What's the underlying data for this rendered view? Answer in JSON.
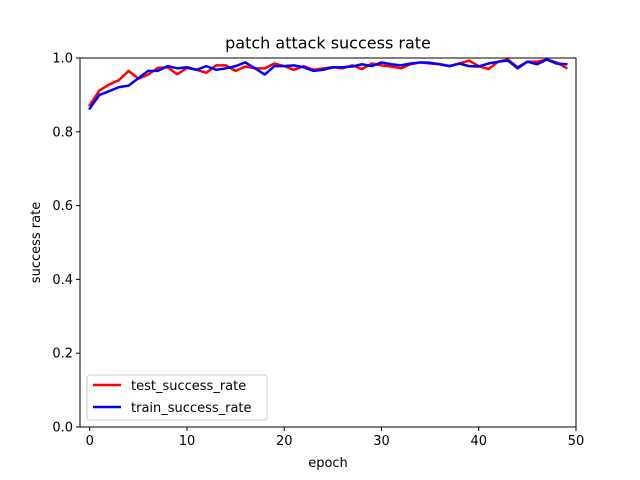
{
  "chart_data": {
    "type": "line",
    "title": "patch attack success rate",
    "xlabel": "epoch",
    "ylabel": "success rate",
    "xlim": [
      -1,
      50
    ],
    "ylim": [
      0,
      1.0
    ],
    "xticks": [
      0,
      10,
      20,
      30,
      40,
      50
    ],
    "xtick_labels": [
      "0",
      "10",
      "20",
      "30",
      "40",
      "50"
    ],
    "yticks": [
      0.0,
      0.2,
      0.4,
      0.6,
      0.8,
      1.0
    ],
    "ytick_labels": [
      "0.0",
      "0.2",
      "0.4",
      "0.6",
      "0.8",
      "1.0"
    ],
    "grid": false,
    "legend_position": "lower-left",
    "x": [
      0,
      1,
      2,
      3,
      4,
      5,
      6,
      7,
      8,
      9,
      10,
      11,
      12,
      13,
      14,
      15,
      16,
      17,
      18,
      19,
      20,
      21,
      22,
      23,
      24,
      25,
      26,
      27,
      28,
      29,
      30,
      31,
      32,
      33,
      34,
      35,
      36,
      37,
      38,
      39,
      40,
      41,
      42,
      43,
      44,
      45,
      46,
      47,
      48,
      49
    ],
    "series": [
      {
        "name": "test_success_rate",
        "color": "#ff0000",
        "values": [
          0.872,
          0.912,
          0.928,
          0.94,
          0.965,
          0.944,
          0.955,
          0.973,
          0.975,
          0.956,
          0.973,
          0.968,
          0.96,
          0.98,
          0.98,
          0.965,
          0.977,
          0.972,
          0.972,
          0.985,
          0.978,
          0.968,
          0.978,
          0.968,
          0.972,
          0.975,
          0.972,
          0.98,
          0.97,
          0.985,
          0.98,
          0.977,
          0.972,
          0.983,
          0.988,
          0.985,
          0.983,
          0.978,
          0.985,
          0.993,
          0.978,
          0.97,
          0.99,
          0.996,
          0.975,
          0.99,
          0.99,
          0.996,
          0.988,
          0.973
        ]
      },
      {
        "name": "train_success_rate",
        "color": "#0000ff",
        "values": [
          0.863,
          0.9,
          0.91,
          0.921,
          0.925,
          0.945,
          0.965,
          0.965,
          0.978,
          0.972,
          0.975,
          0.968,
          0.978,
          0.968,
          0.972,
          0.978,
          0.988,
          0.972,
          0.955,
          0.978,
          0.978,
          0.98,
          0.975,
          0.965,
          0.968,
          0.975,
          0.975,
          0.977,
          0.983,
          0.978,
          0.988,
          0.983,
          0.98,
          0.985,
          0.988,
          0.987,
          0.983,
          0.978,
          0.985,
          0.978,
          0.977,
          0.985,
          0.99,
          0.993,
          0.972,
          0.99,
          0.983,
          0.996,
          0.985,
          0.983
        ]
      }
    ]
  }
}
